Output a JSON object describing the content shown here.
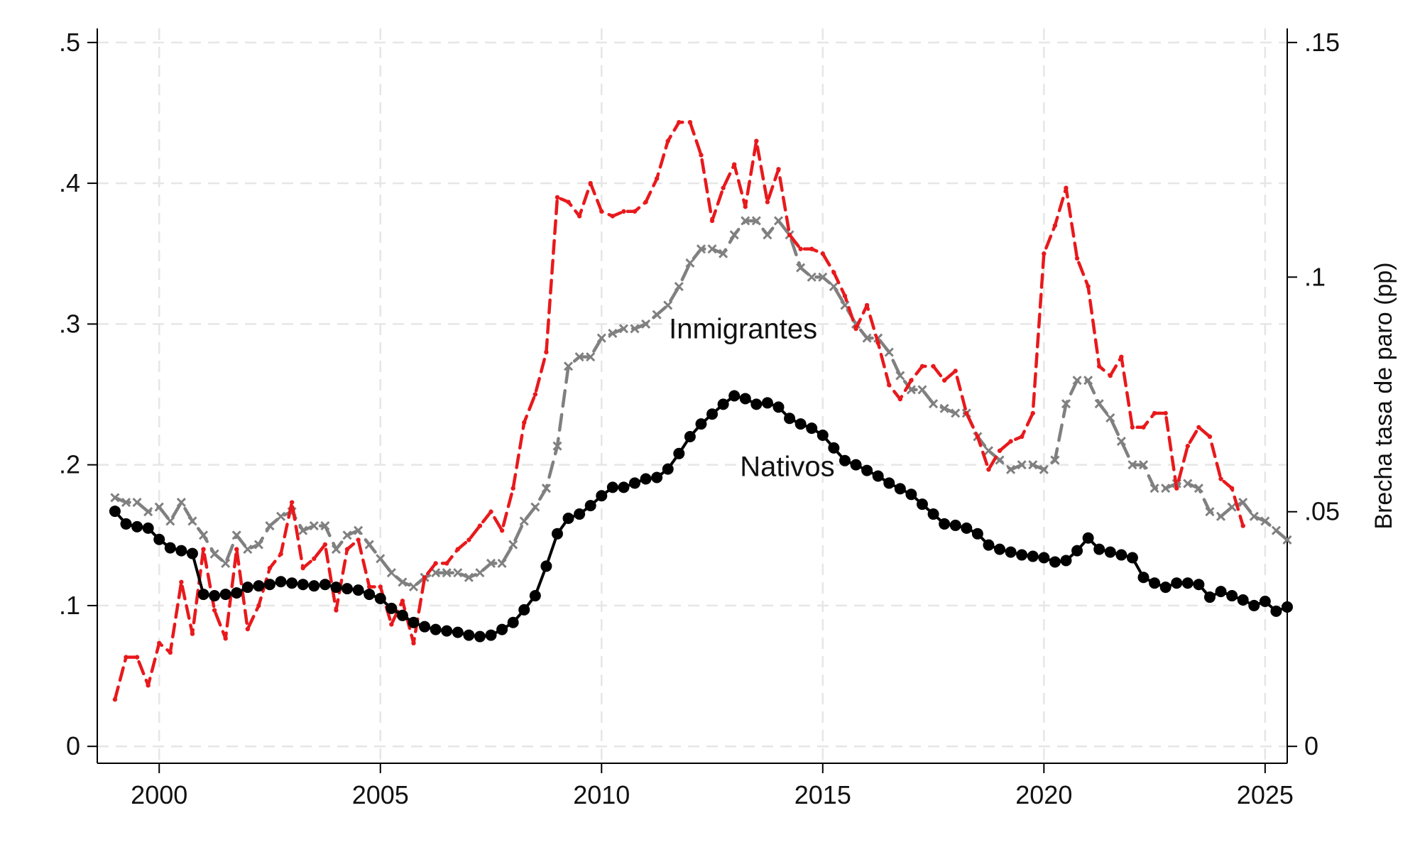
{
  "chart_data": {
    "type": "line",
    "title": "",
    "xlabel": "",
    "ylabel_left": "",
    "ylabel_right": "Brecha tasa de paro (pp)",
    "grid": true,
    "grid_style": "dashed",
    "xlim": [
      1998.6,
      2025.5
    ],
    "ylim_left": [
      -0.012,
      0.51
    ],
    "ylim_right": [
      -0.0036,
      0.153
    ],
    "x_ticks": [
      2000,
      2005,
      2010,
      2015,
      2020,
      2025
    ],
    "x_tick_labels": [
      "2000",
      "2005",
      "2010",
      "2015",
      "2020",
      "2025"
    ],
    "y_left_ticks": [
      0,
      0.1,
      0.2,
      0.3,
      0.4,
      0.5
    ],
    "y_left_tick_labels": [
      "0",
      ".1",
      ".2",
      ".3",
      ".4",
      ".5"
    ],
    "y_right_ticks": [
      0,
      0.05,
      0.1,
      0.15
    ],
    "y_right_tick_labels": [
      "0",
      ".05",
      ".1",
      ".15"
    ],
    "x_start": 1999.0,
    "x_step": 0.25,
    "annotations": [
      {
        "text": "Inmigrantes",
        "x": 2013.2,
        "y": 0.297
      },
      {
        "text": "Nativos",
        "x": 2014.2,
        "y": 0.199
      }
    ],
    "series": [
      {
        "axis": "left",
        "color": "#000000",
        "style": "solid",
        "marker": "circle",
        "values": [
          0.167,
          0.158,
          0.156,
          0.155,
          0.147,
          0.141,
          0.139,
          0.137,
          0.108,
          0.107,
          0.108,
          0.109,
          0.113,
          0.114,
          0.115,
          0.117,
          0.116,
          0.115,
          0.114,
          0.115,
          0.113,
          0.112,
          0.111,
          0.108,
          0.105,
          0.098,
          0.093,
          0.088,
          0.085,
          0.083,
          0.082,
          0.081,
          0.079,
          0.078,
          0.079,
          0.083,
          0.088,
          0.097,
          0.107,
          0.128,
          0.151,
          0.162,
          0.165,
          0.171,
          0.178,
          0.184,
          0.184,
          0.187,
          0.19,
          0.191,
          0.197,
          0.208,
          0.22,
          0.229,
          0.236,
          0.243,
          0.249,
          0.247,
          0.243,
          0.244,
          0.241,
          0.233,
          0.229,
          0.226,
          0.221,
          0.212,
          0.203,
          0.2,
          0.196,
          0.192,
          0.187,
          0.183,
          0.179,
          0.172,
          0.165,
          0.158,
          0.157,
          0.155,
          0.151,
          0.143,
          0.14,
          0.138,
          0.136,
          0.135,
          0.134,
          0.131,
          0.132,
          0.139,
          0.148,
          0.14,
          0.138,
          0.136,
          0.134,
          0.12,
          0.116,
          0.113,
          0.116,
          0.116,
          0.115,
          0.106,
          0.11,
          0.107,
          0.104,
          0.1,
          0.103,
          0.096,
          0.099
        ]
      },
      {
        "axis": "right",
        "color": "#808080",
        "style": "dashed",
        "marker": "x",
        "values": [
          0.053,
          0.052,
          0.052,
          0.05,
          0.051,
          0.048,
          0.052,
          0.048,
          0.045,
          0.041,
          0.039,
          0.045,
          0.042,
          0.043,
          0.047,
          0.049,
          0.05,
          0.046,
          0.047,
          0.047,
          0.042,
          0.045,
          0.046,
          0.043,
          0.04,
          0.037,
          0.035,
          0.034,
          0.036,
          0.037,
          0.037,
          0.037,
          0.036,
          0.037,
          0.039,
          0.039,
          0.043,
          0.048,
          0.051,
          0.055,
          0.064,
          0.081,
          0.083,
          0.083,
          0.087,
          0.088,
          0.089,
          0.089,
          0.09,
          0.092,
          0.094,
          0.098,
          0.103,
          0.106,
          0.106,
          0.105,
          0.109,
          0.112,
          0.112,
          0.109,
          0.112,
          0.109,
          0.102,
          0.1,
          0.1,
          0.098,
          0.094,
          0.09,
          0.087,
          0.087,
          0.084,
          0.079,
          0.076,
          0.076,
          0.073,
          0.072,
          0.071,
          0.071,
          0.066,
          0.063,
          0.061,
          0.059,
          0.06,
          0.06,
          0.059,
          0.061,
          0.073,
          0.078,
          0.078,
          0.073,
          0.07,
          0.065,
          0.06,
          0.06,
          0.055,
          0.055,
          0.056,
          0.056,
          0.055,
          0.05,
          0.049,
          0.051,
          0.052,
          0.049,
          0.048,
          0.046,
          0.044
        ]
      },
      {
        "axis": "right",
        "color": "#e8191c",
        "style": "dashed",
        "marker": "small-dot",
        "values": [
          0.01,
          0.019,
          0.019,
          0.013,
          0.022,
          0.02,
          0.035,
          0.024,
          0.042,
          0.029,
          0.023,
          0.042,
          0.025,
          0.03,
          0.038,
          0.041,
          0.052,
          0.038,
          0.04,
          0.043,
          0.029,
          0.042,
          0.044,
          0.034,
          0.034,
          0.026,
          0.031,
          0.022,
          0.036,
          0.039,
          0.039,
          0.042,
          0.044,
          0.047,
          0.05,
          0.046,
          0.055,
          0.069,
          0.075,
          0.084,
          0.117,
          0.116,
          0.113,
          0.12,
          0.114,
          0.113,
          0.114,
          0.114,
          0.116,
          0.121,
          0.129,
          0.133,
          0.133,
          0.126,
          0.112,
          0.119,
          0.124,
          0.115,
          0.129,
          0.116,
          0.123,
          0.109,
          0.106,
          0.106,
          0.105,
          0.101,
          0.096,
          0.089,
          0.094,
          0.086,
          0.077,
          0.074,
          0.078,
          0.081,
          0.081,
          0.078,
          0.08,
          0.071,
          0.066,
          0.059,
          0.063,
          0.065,
          0.066,
          0.071,
          0.105,
          0.111,
          0.119,
          0.104,
          0.098,
          0.081,
          0.079,
          0.083,
          0.068,
          0.068,
          0.071,
          0.071,
          0.055,
          0.064,
          0.068,
          0.066,
          0.057,
          0.055,
          0.047
        ]
      }
    ]
  }
}
